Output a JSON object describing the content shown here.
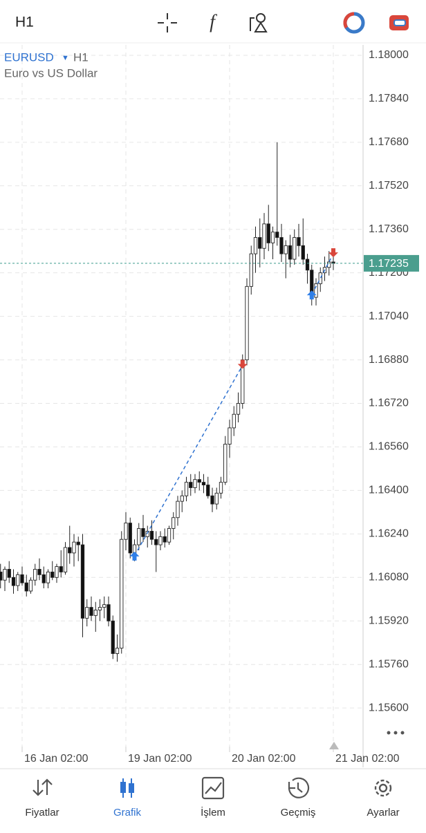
{
  "header": {
    "timeframe": "H1"
  },
  "chart_data": {
    "type": "candlestick",
    "symbol": "EURUSD",
    "timeframe": "H1",
    "description": "Euro vs US Dollar",
    "categories": [
      null,
      null,
      null,
      null,
      null,
      "16 Jan 02:00",
      null,
      null,
      null,
      null,
      null,
      null,
      null,
      null,
      null,
      null,
      null,
      null,
      null,
      null,
      null,
      null,
      null,
      null,
      null,
      null,
      null,
      null,
      null,
      "19 Jan 02:00",
      null,
      null,
      null,
      null,
      null,
      null,
      null,
      null,
      null,
      null,
      null,
      null,
      null,
      null,
      null,
      null,
      null,
      null,
      null,
      null,
      null,
      null,
      null,
      "20 Jan 02:00",
      null,
      null,
      null,
      null,
      null,
      null,
      null,
      null,
      null,
      null,
      null,
      null,
      null,
      null,
      null,
      null,
      null,
      null,
      null,
      null,
      null,
      null,
      null,
      "21 Jan 02:00"
    ],
    "open": [
      1.161,
      1.1607,
      1.1611,
      1.1608,
      1.1605,
      1.1609,
      1.1606,
      1.1603,
      1.1607,
      1.1611,
      1.1609,
      1.1606,
      1.161,
      1.1608,
      1.1612,
      1.161,
      1.1619,
      1.1617,
      1.1621,
      1.162,
      1.1593,
      1.1597,
      1.1594,
      1.1596,
      1.1597,
      1.1598,
      1.1592,
      1.158,
      1.1582,
      1.1622,
      1.1628,
      1.1617,
      1.162,
      1.1626,
      1.1623,
      1.1625,
      1.1622,
      1.162,
      1.1623,
      1.1621,
      1.1626,
      1.163,
      1.1636,
      1.1638,
      1.1643,
      1.1641,
      1.1644,
      1.1643,
      1.1642,
      1.1638,
      1.1635,
      1.1639,
      1.1643,
      1.1657,
      1.1663,
      1.1668,
      1.1672,
      1.1688,
      1.1715,
      1.1727,
      1.1733,
      1.1729,
      1.1738,
      1.1731,
      1.1735,
      1.1733,
      1.1727,
      1.173,
      1.1725,
      1.1733,
      1.173,
      1.1725,
      1.1721,
      1.1711,
      1.1716,
      1.172,
      1.1722,
      1.1724
    ],
    "high": [
      1.1613,
      1.1612,
      1.1614,
      1.1611,
      1.161,
      1.1612,
      1.1609,
      1.1608,
      1.1613,
      1.1615,
      1.1612,
      1.1611,
      1.1614,
      1.1613,
      1.1618,
      1.1621,
      1.1627,
      1.1624,
      1.1623,
      1.1624,
      1.16,
      1.1601,
      1.1599,
      1.16,
      1.1601,
      1.1601,
      1.1594,
      1.1587,
      1.1625,
      1.1632,
      1.163,
      1.1622,
      1.1628,
      1.1631,
      1.1627,
      1.1629,
      1.1625,
      1.1625,
      1.1626,
      1.1627,
      1.1632,
      1.1638,
      1.164,
      1.1645,
      1.1646,
      1.1646,
      1.1647,
      1.1646,
      1.1645,
      1.1641,
      1.1641,
      1.1645,
      1.166,
      1.1666,
      1.1671,
      1.1676,
      1.169,
      1.1718,
      1.173,
      1.1737,
      1.174,
      1.1742,
      1.1745,
      1.1737,
      1.1768,
      1.1738,
      1.1732,
      1.1734,
      1.1736,
      1.1738,
      1.174,
      1.1727,
      1.1723,
      1.1718,
      1.1722,
      1.1726,
      1.1728,
      1.1727
    ],
    "low": [
      1.1604,
      1.1603,
      1.1606,
      1.1602,
      1.1603,
      1.1605,
      1.1601,
      1.1602,
      1.1605,
      1.1607,
      1.1604,
      1.1604,
      1.1607,
      1.1606,
      1.1608,
      1.1609,
      1.1613,
      1.1612,
      1.1614,
      1.1586,
      1.159,
      1.1592,
      1.1588,
      1.1592,
      1.1593,
      1.159,
      1.1578,
      1.1577,
      1.158,
      1.1618,
      1.1615,
      1.1614,
      1.1618,
      1.1621,
      1.1619,
      1.162,
      1.161,
      1.1618,
      1.1619,
      1.162,
      1.1622,
      1.1627,
      1.1632,
      1.1636,
      1.1638,
      1.1639,
      1.164,
      1.1639,
      1.1637,
      1.1632,
      1.1633,
      1.1637,
      1.1642,
      1.1652,
      1.166,
      1.1665,
      1.167,
      1.1686,
      1.1712,
      1.172,
      1.1722,
      1.1725,
      1.1728,
      1.1725,
      1.173,
      1.1724,
      1.1718,
      1.1722,
      1.1723,
      1.1726,
      1.1723,
      1.1716,
      1.1708,
      1.1708,
      1.1713,
      1.1717,
      1.1719,
      1.1721
    ],
    "close": [
      1.1607,
      1.1611,
      1.1608,
      1.1605,
      1.1609,
      1.1606,
      1.1603,
      1.1607,
      1.1611,
      1.1609,
      1.1606,
      1.161,
      1.1608,
      1.1612,
      1.161,
      1.1619,
      1.1617,
      1.1621,
      1.162,
      1.1593,
      1.1597,
      1.1594,
      1.1596,
      1.1597,
      1.1598,
      1.1592,
      1.158,
      1.1582,
      1.1622,
      1.1628,
      1.1617,
      1.162,
      1.1626,
      1.1623,
      1.1625,
      1.1622,
      1.162,
      1.1623,
      1.1621,
      1.1626,
      1.163,
      1.1636,
      1.1638,
      1.1643,
      1.1641,
      1.1644,
      1.1643,
      1.1642,
      1.1638,
      1.1635,
      1.1639,
      1.1643,
      1.1657,
      1.1663,
      1.1668,
      1.1672,
      1.1688,
      1.1715,
      1.1727,
      1.1733,
      1.1729,
      1.1738,
      1.1731,
      1.1735,
      1.1733,
      1.1727,
      1.173,
      1.1725,
      1.1733,
      1.173,
      1.1725,
      1.1721,
      1.1711,
      1.1716,
      1.172,
      1.1722,
      1.1724,
      1.17235
    ],
    "last_price": 1.17235,
    "trades": [
      {
        "open_index": 31,
        "open_price": 1.1616,
        "close_index": 56,
        "close_price": 1.1686
      },
      {
        "open_index": 72,
        "open_price": 1.1712,
        "close_index": 77,
        "close_price": 1.1727
      }
    ],
    "ylim": [
      1.15458,
      1.18038
    ],
    "yticks": [
      {
        "value": 1.18,
        "label": "1.18000"
      },
      {
        "value": 1.1784,
        "label": "1.17840"
      },
      {
        "value": 1.1768,
        "label": "1.17680"
      },
      {
        "value": 1.1752,
        "label": "1.17520"
      },
      {
        "value": 1.1736,
        "label": "1.17360"
      },
      {
        "value": 1.172,
        "label": "1.17200"
      },
      {
        "value": 1.1704,
        "label": "1.17040"
      },
      {
        "value": 1.1688,
        "label": "1.16880"
      },
      {
        "value": 1.1672,
        "label": "1.16720"
      },
      {
        "value": 1.1656,
        "label": "1.16560"
      },
      {
        "value": 1.164,
        "label": "1.16400"
      },
      {
        "value": 1.1624,
        "label": "1.16240"
      },
      {
        "value": 1.1608,
        "label": "1.16080"
      },
      {
        "value": 1.1592,
        "label": "1.15920"
      },
      {
        "value": 1.1576,
        "label": "1.15760"
      },
      {
        "value": 1.156,
        "label": "1.15600"
      }
    ],
    "grid": true
  },
  "nav": [
    {
      "label": "Fiyatlar"
    },
    {
      "label": "Grafik",
      "active": true
    },
    {
      "label": "İşlem"
    },
    {
      "label": "Geçmiş"
    },
    {
      "label": "Ayarlar"
    }
  ]
}
